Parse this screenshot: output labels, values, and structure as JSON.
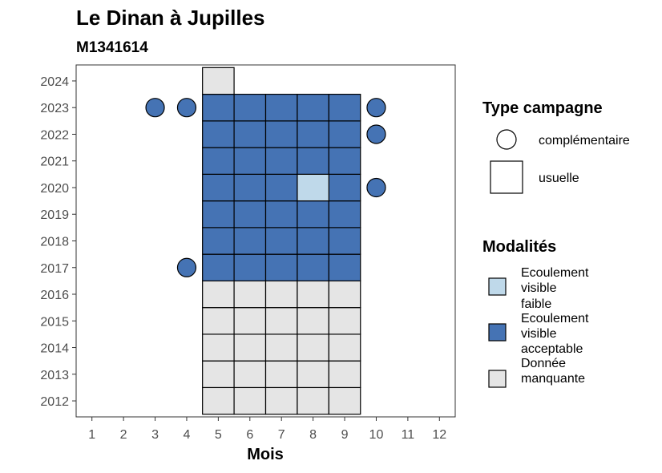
{
  "chart_data": {
    "type": "heatmap",
    "title": "Le Dinan à Jupilles",
    "subtitle": "M1341614",
    "xlabel": "Mois",
    "ylabel": "",
    "x_ticks": [
      "1",
      "2",
      "3",
      "4",
      "5",
      "6",
      "7",
      "8",
      "9",
      "10",
      "11",
      "12"
    ],
    "y_ticks": [
      "2012",
      "2013",
      "2014",
      "2015",
      "2016",
      "2017",
      "2018",
      "2019",
      "2020",
      "2021",
      "2022",
      "2023",
      "2024"
    ],
    "xlim": [
      0.5,
      12.5
    ],
    "ylim": [
      2011.4,
      2024.6
    ],
    "grid": false,
    "colors": {
      "faible": "#bfd9ea",
      "acceptable": "#4573b4",
      "manquante": "#e5e5e5"
    },
    "legend_type": {
      "title": "Type campagne",
      "items": [
        {
          "shape": "circle",
          "label": "complémentaire"
        },
        {
          "shape": "square",
          "label": "usuelle"
        }
      ]
    },
    "legend_modalites": {
      "title": "Modalités",
      "items": [
        {
          "key": "faible",
          "lines": [
            "Ecoulement",
            "visible",
            "faible"
          ]
        },
        {
          "key": "acceptable",
          "lines": [
            "Ecoulement",
            "visible",
            "acceptable"
          ]
        },
        {
          "key": "manquante",
          "lines": [
            "Donnée",
            "manquante"
          ]
        }
      ]
    },
    "usuelle": [
      {
        "year": 2012,
        "months": [
          5,
          6,
          7,
          8,
          9
        ],
        "value": "manquante"
      },
      {
        "year": 2013,
        "months": [
          5,
          6,
          7,
          8,
          9
        ],
        "value": "manquante"
      },
      {
        "year": 2014,
        "months": [
          5,
          6,
          7,
          8,
          9
        ],
        "value": "manquante"
      },
      {
        "year": 2015,
        "months": [
          5,
          6,
          7,
          8,
          9
        ],
        "value": "manquante"
      },
      {
        "year": 2016,
        "months": [
          5,
          6,
          7,
          8,
          9
        ],
        "value": "manquante"
      },
      {
        "year": 2017,
        "months": [
          5,
          6,
          7,
          8,
          9
        ],
        "value": "acceptable"
      },
      {
        "year": 2018,
        "months": [
          5,
          6,
          7,
          8,
          9
        ],
        "value": "acceptable"
      },
      {
        "year": 2019,
        "months": [
          5,
          6,
          7,
          8,
          9
        ],
        "value": "acceptable"
      },
      {
        "year": 2020,
        "months": [
          5,
          6,
          7,
          9
        ],
        "value": "acceptable"
      },
      {
        "year": 2020,
        "months": [
          8
        ],
        "value": "faible"
      },
      {
        "year": 2021,
        "months": [
          5,
          6,
          7,
          8,
          9
        ],
        "value": "acceptable"
      },
      {
        "year": 2022,
        "months": [
          5,
          6,
          7,
          8,
          9
        ],
        "value": "acceptable"
      },
      {
        "year": 2023,
        "months": [
          5,
          6,
          7,
          8,
          9
        ],
        "value": "acceptable"
      },
      {
        "year": 2024,
        "months": [
          5
        ],
        "value": "manquante"
      }
    ],
    "complementaire": [
      {
        "year": 2017,
        "month": 4,
        "value": "acceptable"
      },
      {
        "year": 2020,
        "month": 10,
        "value": "acceptable"
      },
      {
        "year": 2022,
        "month": 10,
        "value": "acceptable"
      },
      {
        "year": 2023,
        "month": 3,
        "value": "acceptable"
      },
      {
        "year": 2023,
        "month": 4,
        "value": "acceptable"
      },
      {
        "year": 2023,
        "month": 10,
        "value": "acceptable"
      }
    ]
  }
}
